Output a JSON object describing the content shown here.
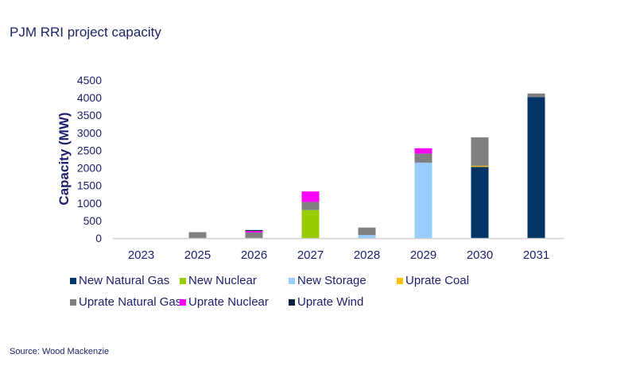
{
  "title": "PJM RRI project capacity",
  "source": "Source: Wood Mackenzie",
  "chart_data": {
    "type": "bar",
    "stacked": true,
    "title": "PJM RRI project capacity",
    "xlabel": "",
    "ylabel": "Capacity (MW)",
    "ylim": [
      0,
      4500
    ],
    "yticks": [
      0,
      500,
      1000,
      1500,
      2000,
      2500,
      3000,
      3500,
      4000,
      4500
    ],
    "grid": false,
    "legend_position": "bottom",
    "categories": [
      "2023",
      "2025",
      "2026",
      "2027",
      "2028",
      "2029",
      "2030",
      "2031"
    ],
    "series": [
      {
        "name": "New Natural Gas",
        "color": "#003366",
        "values": [
          0,
          0,
          0,
          0,
          0,
          0,
          2030,
          4020
        ]
      },
      {
        "name": "New Nuclear",
        "color": "#99CC00",
        "values": [
          0,
          0,
          0,
          800,
          0,
          0,
          0,
          0
        ]
      },
      {
        "name": "New Storage",
        "color": "#99CCFF",
        "values": [
          0,
          0,
          0,
          0,
          90,
          2150,
          0,
          0
        ]
      },
      {
        "name": "Uprate Coal",
        "color": "#FFC000",
        "values": [
          0,
          0,
          0,
          0,
          0,
          0,
          30,
          0
        ]
      },
      {
        "name": "Uprate Natural Gas",
        "color": "#808080",
        "values": [
          0,
          170,
          160,
          230,
          210,
          260,
          810,
          100
        ]
      },
      {
        "name": "Uprate Nuclear",
        "color": "#FF00FF",
        "values": [
          0,
          0,
          40,
          300,
          0,
          150,
          0,
          0
        ]
      },
      {
        "name": "Uprate Wind",
        "color": "#0B2341",
        "values": [
          0,
          0,
          30,
          0,
          0,
          0,
          0,
          0
        ]
      }
    ]
  }
}
